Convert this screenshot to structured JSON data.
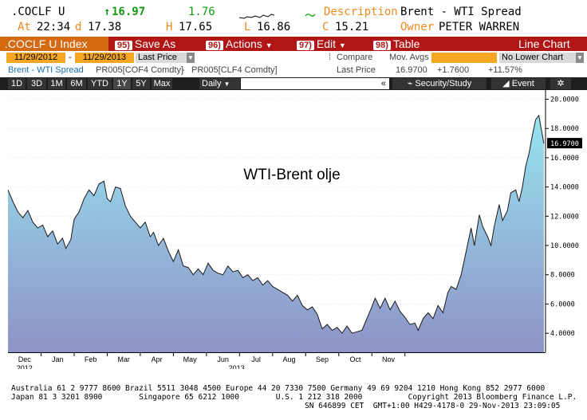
{
  "quote": {
    "ticker": ".COCLF U",
    "last_arrow": "↑",
    "last": "16.97",
    "change": "1.76",
    "desc_label": "Description",
    "description": "Brent - WTI Spread",
    "at_label": "At",
    "time": "22:34",
    "d_label": "d",
    "open": "17.38",
    "h_label": "H",
    "high": "17.65",
    "l_label": "L",
    "low": "16.86",
    "c_label": "C",
    "close": "15.21",
    "owner_label": "Owner",
    "owner": "PETER WARREN"
  },
  "menu": {
    "index_label": ".COCLF U Index",
    "save": {
      "key": "95)",
      "label": "Save As"
    },
    "actions": {
      "key": "96)",
      "label": "Actions"
    },
    "edit": {
      "key": "97)",
      "label": "Edit"
    },
    "table": {
      "key": "98)",
      "label": "Table"
    },
    "chart_type": "Line Chart"
  },
  "controls": {
    "start_date": "11/29/2012",
    "date_sep": "-",
    "end_date": "11/29/2013",
    "price_field": "Last Price",
    "compare": "Compare",
    "mov_avgs": "Mov. Avgs",
    "lower_chart": "No Lower Chart"
  },
  "legend_row": {
    "series": "Brent - WTI Spread",
    "formula_a": "PR005[COF4 Comdty]",
    "minus": "-",
    "formula_b": "PR005[CLF4 Comdty]",
    "price_label": "Last Price",
    "price": "16.9700",
    "chg": "+1.7600",
    "pct": "+11.57%"
  },
  "toolbar": {
    "periods": [
      "1D",
      "3D",
      "1M",
      "6M",
      "YTD",
      "1Y",
      "5Y",
      "Max"
    ],
    "selected": "1Y",
    "frequency": "Daily",
    "security_study": "Security/Study",
    "event": "Event"
  },
  "chart_data": {
    "type": "area",
    "title": "WTI-Brent olje",
    "x_unit": "month index (0 = 2012-11-29)",
    "x_month_labels": [
      "Dec",
      "Jan",
      "Feb",
      "Mar",
      "Apr",
      "May",
      "Jun",
      "Jul",
      "Aug",
      "Sep",
      "Oct",
      "Nov"
    ],
    "x_year_labels": [
      {
        "label": "2012",
        "at": "Dec"
      },
      {
        "label": "2013",
        "at": "Jun"
      }
    ],
    "ylim": [
      2.7,
      20.3
    ],
    "y_ticks": [
      "20.0000",
      "18.0000",
      "16.0000",
      "14.0000",
      "12.0000",
      "10.0000",
      "8.0000",
      "6.0000",
      "4.0000"
    ],
    "last_value_label": "16.9700",
    "points": [
      [
        0.0,
        13.8
      ],
      [
        0.15,
        13.0
      ],
      [
        0.3,
        12.3
      ],
      [
        0.45,
        11.9
      ],
      [
        0.6,
        12.4
      ],
      [
        0.75,
        11.6
      ],
      [
        0.9,
        11.2
      ],
      [
        1.05,
        11.4
      ],
      [
        1.2,
        10.6
      ],
      [
        1.35,
        11.0
      ],
      [
        1.5,
        10.1
      ],
      [
        1.65,
        10.5
      ],
      [
        1.75,
        9.8
      ],
      [
        1.9,
        10.4
      ],
      [
        2.0,
        11.8
      ],
      [
        2.15,
        12.3
      ],
      [
        2.3,
        13.2
      ],
      [
        2.45,
        13.8
      ],
      [
        2.6,
        13.4
      ],
      [
        2.75,
        14.2
      ],
      [
        2.9,
        14.4
      ],
      [
        3.0,
        13.2
      ],
      [
        3.1,
        13.0
      ],
      [
        3.25,
        14.0
      ],
      [
        3.4,
        13.9
      ],
      [
        3.55,
        12.7
      ],
      [
        3.7,
        12.0
      ],
      [
        3.85,
        11.6
      ],
      [
        4.0,
        11.2
      ],
      [
        4.15,
        11.6
      ],
      [
        4.3,
        10.6
      ],
      [
        4.4,
        10.9
      ],
      [
        4.55,
        10.0
      ],
      [
        4.7,
        10.5
      ],
      [
        4.85,
        9.6
      ],
      [
        5.0,
        8.9
      ],
      [
        5.15,
        9.7
      ],
      [
        5.3,
        8.6
      ],
      [
        5.45,
        8.5
      ],
      [
        5.6,
        8.0
      ],
      [
        5.75,
        8.4
      ],
      [
        5.9,
        8.0
      ],
      [
        6.05,
        8.8
      ],
      [
        6.2,
        8.3
      ],
      [
        6.35,
        8.1
      ],
      [
        6.5,
        8.0
      ],
      [
        6.65,
        8.6
      ],
      [
        6.8,
        8.2
      ],
      [
        6.95,
        8.3
      ],
      [
        7.1,
        7.8
      ],
      [
        7.25,
        8.0
      ],
      [
        7.4,
        7.6
      ],
      [
        7.55,
        7.8
      ],
      [
        7.7,
        7.3
      ],
      [
        7.85,
        7.6
      ],
      [
        8.0,
        7.2
      ],
      [
        8.15,
        7.0
      ],
      [
        8.3,
        6.8
      ],
      [
        8.45,
        6.6
      ],
      [
        8.6,
        6.2
      ],
      [
        8.75,
        6.6
      ],
      [
        8.9,
        5.9
      ],
      [
        9.05,
        5.6
      ],
      [
        9.2,
        5.8
      ],
      [
        9.35,
        5.3
      ],
      [
        9.5,
        4.3
      ],
      [
        9.65,
        4.6
      ],
      [
        9.8,
        4.2
      ],
      [
        9.95,
        4.4
      ],
      [
        10.1,
        4.0
      ],
      [
        10.25,
        4.5
      ],
      [
        10.4,
        4.0
      ],
      [
        10.55,
        4.1
      ],
      [
        10.7,
        4.2
      ],
      [
        10.85,
        5.0
      ],
      [
        11.0,
        5.8
      ],
      [
        11.1,
        6.4
      ],
      [
        11.25,
        5.7
      ],
      [
        11.4,
        6.4
      ],
      [
        11.55,
        5.6
      ],
      [
        11.7,
        6.2
      ],
      [
        11.85,
        5.5
      ],
      [
        12.0,
        5.1
      ],
      [
        12.15,
        4.6
      ],
      [
        12.3,
        4.7
      ],
      [
        12.4,
        4.2
      ],
      [
        12.55,
        5.0
      ],
      [
        12.7,
        5.4
      ],
      [
        12.85,
        5.0
      ],
      [
        13.0,
        5.9
      ],
      [
        13.15,
        5.4
      ],
      [
        13.3,
        6.8
      ],
      [
        13.4,
        7.2
      ],
      [
        13.55,
        7.0
      ],
      [
        13.7,
        8.0
      ],
      [
        13.85,
        9.6
      ],
      [
        14.0,
        11.2
      ],
      [
        14.1,
        10.0
      ],
      [
        14.25,
        12.1
      ],
      [
        14.35,
        11.3
      ],
      [
        14.5,
        10.6
      ],
      [
        14.6,
        10.0
      ],
      [
        14.7,
        11.3
      ],
      [
        14.85,
        12.8
      ],
      [
        14.95,
        11.7
      ],
      [
        15.1,
        12.4
      ],
      [
        15.2,
        13.6
      ],
      [
        15.35,
        13.8
      ],
      [
        15.45,
        13.0
      ],
      [
        15.55,
        14.0
      ],
      [
        15.65,
        15.4
      ],
      [
        15.75,
        16.3
      ],
      [
        15.85,
        17.5
      ],
      [
        15.95,
        18.6
      ],
      [
        16.05,
        18.9
      ],
      [
        16.1,
        18.2
      ],
      [
        16.15,
        17.6
      ],
      [
        16.2,
        16.97
      ]
    ]
  },
  "footer": {
    "line1": "Australia 61 2 9777 8600 Brazil 5511 3048 4500 Europe 44 20 7330 7500 Germany 49 69 9204 1210 Hong Kong 852 2977 6000",
    "line2": "Japan 81 3 3201 8900        Singapore 65 6212 1000        U.S. 1 212 318 2000          Copyright 2013 Bloomberg Finance L.P.",
    "line3": "SN 646899 CET  GMT+1:00 H429-4178-0 29-Nov-2013 23:09:05"
  },
  "colors": {
    "bg": "#ffffff",
    "menu_red": "#b01616",
    "orange": "#f08a1f",
    "green": "#149a14",
    "plot_bg": "#ffffff",
    "area_top": "#97e4f0",
    "area_bottom": "#8f93c6",
    "line": "#1a1a1a"
  }
}
